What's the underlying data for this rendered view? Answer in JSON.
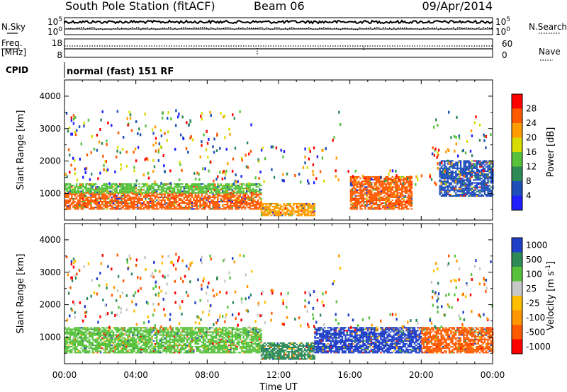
{
  "header": {
    "title": "South Pole Station (fitACF)",
    "beam": "Beam 06",
    "date": "09/Apr/2014"
  },
  "top_panels": {
    "nsky_label": "N.Sky",
    "nsearch_label": "N.Search",
    "nsky_ticks": [
      "10^5",
      "10^0"
    ],
    "nsearch_ticks": [
      "10^5",
      "10^0"
    ],
    "freq_label_1": "Freq.",
    "freq_label_2": "[MHz]",
    "freq_ticks": [
      "18",
      "8"
    ],
    "nave_label": "Nave",
    "nave_ticks": [
      "60",
      "0"
    ],
    "cpid_label": "CPID",
    "cpid_value": "normal (fast) 151 RF"
  },
  "chart_data": [
    {
      "type": "heatmap",
      "title": "",
      "quantity": "Power",
      "ylabel": "Slant Range [km]",
      "xlabel": "Time UT",
      "ylim": [
        180,
        4500
      ],
      "yticks": [
        1000,
        2000,
        3000,
        4000
      ],
      "x_ticks": [
        "00:00",
        "04:00",
        "08:00",
        "12:00",
        "16:00",
        "20:00",
        "00:00"
      ],
      "colorbar_label": "Power [dB]",
      "colorbar_ticks": [
        "28",
        "24",
        "20",
        "16",
        "12",
        "8",
        "4"
      ],
      "colorbar_colors": [
        "#ff0000",
        "#ff5a00",
        "#ff9c00",
        "#d8dc00",
        "#58c23c",
        "#2e8a57",
        "#1f4fb8",
        "#2020ff"
      ],
      "bands": [
        {
          "t": [
            0,
            11
          ],
          "r": [
            500,
            1000
          ],
          "level": 28
        },
        {
          "t": [
            0,
            11
          ],
          "r": [
            1000,
            1300
          ],
          "level": 16
        },
        {
          "t": [
            11,
            14
          ],
          "r": [
            300,
            700
          ],
          "level": 24
        },
        {
          "t": [
            16,
            19.5
          ],
          "r": [
            500,
            1500
          ],
          "level": 26
        },
        {
          "t": [
            21,
            24
          ],
          "r": [
            900,
            2000
          ],
          "level": 8
        }
      ]
    },
    {
      "type": "heatmap",
      "title": "",
      "quantity": "Velocity",
      "ylabel": "Slant Range [km]",
      "xlabel": "Time UT",
      "ylim": [
        180,
        4500
      ],
      "yticks": [
        1000,
        2000,
        3000,
        4000
      ],
      "x_ticks": [
        "00:00",
        "04:00",
        "08:00",
        "12:00",
        "16:00",
        "20:00",
        "00:00"
      ],
      "colorbar_label": "Velocity [m s^-1]",
      "colorbar_ticks": [
        "1000",
        "500",
        "100",
        "25",
        "-25",
        "-100",
        "-500",
        "-1000"
      ],
      "colorbar_colors": [
        "#1f3fc8",
        "#2e8a57",
        "#58c23c",
        "#c8c8c8",
        "#ffbe00",
        "#ff9600",
        "#ff5a00",
        "#ff0000"
      ],
      "bands": [
        {
          "t": [
            0,
            11
          ],
          "r": [
            500,
            1300
          ],
          "level": 100
        },
        {
          "t": [
            11,
            14
          ],
          "r": [
            300,
            800
          ],
          "level": 500
        },
        {
          "t": [
            14,
            20
          ],
          "r": [
            500,
            1300
          ],
          "level": 1000
        },
        {
          "t": [
            20,
            24
          ],
          "r": [
            500,
            1300
          ],
          "level": -500
        }
      ]
    }
  ]
}
